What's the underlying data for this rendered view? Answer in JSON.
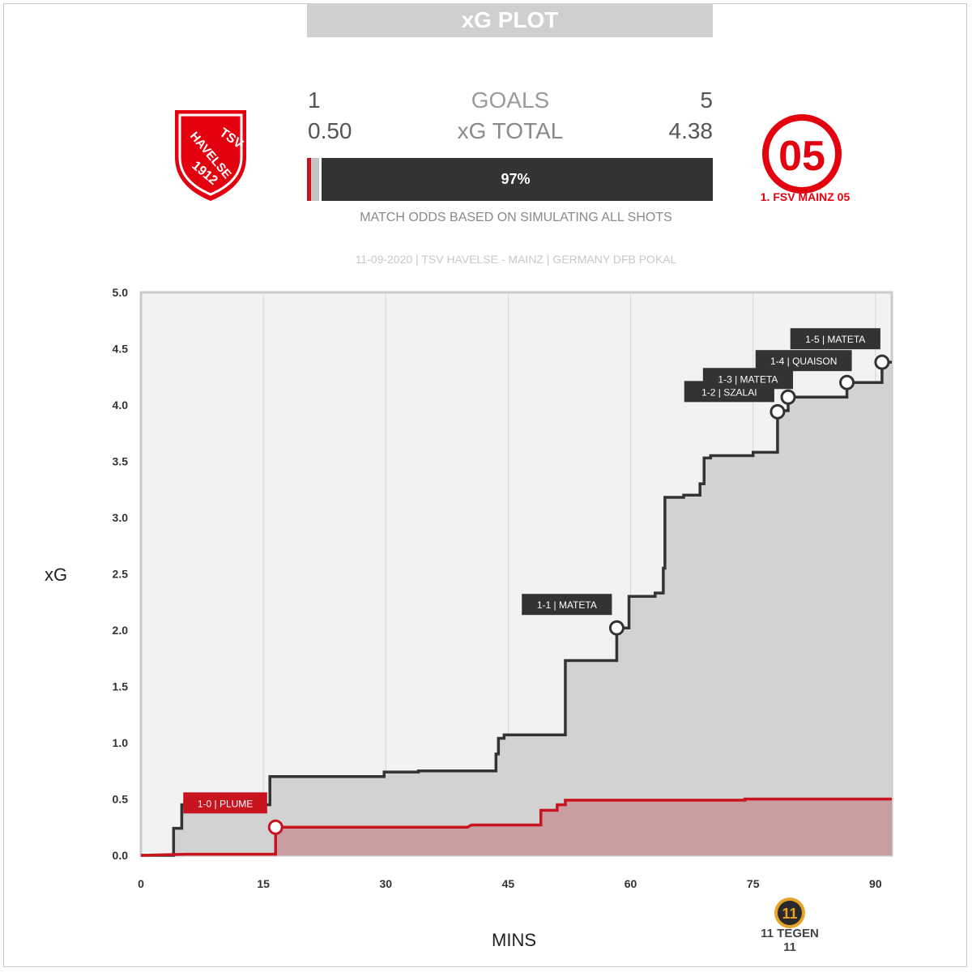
{
  "header": {
    "title": "xG PLOT"
  },
  "scores": {
    "goals_label": "GOALS",
    "xg_label": "xG TOTAL",
    "home_goals": "1",
    "away_goals": "5",
    "home_xg": "0.50",
    "away_xg": "4.38"
  },
  "odds": {
    "away_win_label": "97%",
    "home_win": 0.01,
    "draw": 0.02,
    "away_win": 0.97,
    "note": "MATCH ODDS BASED ON SIMULATING ALL SHOTS"
  },
  "match_info": "11-09-2020 | TSV HAVELSE - MAINZ | GERMANY DFB POKAL",
  "teams": {
    "home": {
      "name": "TSV HAVELSE",
      "logo_top": "TSV",
      "logo_mid": "HAVELSE",
      "logo_year": "1912",
      "color": "#e3000f"
    },
    "away": {
      "name": "1. FSV MAINZ 05",
      "logo_mark": "05",
      "logo_ring": "1. FSV MAINZ 05",
      "color": "#e3000f"
    }
  },
  "brand": {
    "mark": "11",
    "name": "11 TEGEN 11"
  },
  "colors": {
    "home": "#c8141e",
    "away": "#333333",
    "home_fill": "#c99a9e",
    "away_fill": "#d2d2d2",
    "plot_bg": "#f2f2f2"
  },
  "chart_data": {
    "type": "line",
    "step": true,
    "xlabel": "MINS",
    "ylabel": "xG",
    "xlim": [
      0,
      92
    ],
    "ylim": [
      0,
      5
    ],
    "x_ticks": [
      0,
      15,
      30,
      45,
      60,
      75,
      90
    ],
    "y_ticks": [
      "0.0",
      "0.5",
      "1.0",
      "1.5",
      "2.0",
      "2.5",
      "3.0",
      "3.5",
      "4.0",
      "4.5",
      "5.0"
    ],
    "series": [
      {
        "name": "TSV HAVELSE",
        "points": [
          [
            0,
            0
          ],
          [
            5.5,
            0.01
          ],
          [
            16.5,
            0.01
          ],
          [
            16.5,
            0.25
          ],
          [
            40,
            0.25
          ],
          [
            40.5,
            0.27
          ],
          [
            49,
            0.27
          ],
          [
            49,
            0.4
          ],
          [
            51,
            0.4
          ],
          [
            51,
            0.45
          ],
          [
            52,
            0.45
          ],
          [
            52,
            0.49
          ],
          [
            74,
            0.49
          ],
          [
            74,
            0.5
          ],
          [
            92,
            0.5
          ]
        ]
      },
      {
        "name": "MAINZ",
        "points": [
          [
            0,
            0
          ],
          [
            4,
            0
          ],
          [
            4,
            0.24
          ],
          [
            5,
            0.24
          ],
          [
            5,
            0.45
          ],
          [
            15.8,
            0.45
          ],
          [
            15.8,
            0.7
          ],
          [
            29.8,
            0.7
          ],
          [
            29.8,
            0.74
          ],
          [
            34,
            0.74
          ],
          [
            34,
            0.75
          ],
          [
            43.5,
            0.75
          ],
          [
            43.5,
            0.9
          ],
          [
            43.8,
            0.9
          ],
          [
            43.8,
            1.04
          ],
          [
            44.5,
            1.04
          ],
          [
            44.5,
            1.07
          ],
          [
            52,
            1.07
          ],
          [
            52,
            1.73
          ],
          [
            58.3,
            1.73
          ],
          [
            58.3,
            2.02
          ],
          [
            59.8,
            2.02
          ],
          [
            59.8,
            2.3
          ],
          [
            63,
            2.3
          ],
          [
            63,
            2.33
          ],
          [
            64,
            2.33
          ],
          [
            64,
            2.55
          ],
          [
            64.2,
            2.55
          ],
          [
            64.2,
            3.18
          ],
          [
            66.5,
            3.18
          ],
          [
            66.5,
            3.2
          ],
          [
            68.5,
            3.2
          ],
          [
            68.5,
            3.3
          ],
          [
            69,
            3.3
          ],
          [
            69,
            3.53
          ],
          [
            69.8,
            3.53
          ],
          [
            69.8,
            3.55
          ],
          [
            75,
            3.55
          ],
          [
            75,
            3.58
          ],
          [
            78,
            3.58
          ],
          [
            78,
            3.94
          ],
          [
            78.3,
            3.94
          ],
          [
            78.3,
            3.95
          ],
          [
            79.3,
            3.95
          ],
          [
            79.3,
            4.07
          ],
          [
            86.5,
            4.07
          ],
          [
            86.5,
            4.2
          ],
          [
            90.8,
            4.2
          ],
          [
            90.8,
            4.38
          ],
          [
            92,
            4.38
          ]
        ]
      }
    ],
    "goals": [
      {
        "label": "1-0 | PLUME",
        "team": "home",
        "x": 16.5,
        "y": 0.25
      },
      {
        "label": "1-1 | MATETA",
        "team": "away",
        "x": 58.3,
        "y": 2.02
      },
      {
        "label": "1-2 | SZALAI",
        "team": "away",
        "x": 78,
        "y": 3.94
      },
      {
        "label": "1-3 | MATETA",
        "team": "away",
        "x": 79.3,
        "y": 4.07
      },
      {
        "label": "1-4 | QUAISON",
        "team": "away",
        "x": 86.5,
        "y": 4.2
      },
      {
        "label": "1-5 | MATETA",
        "team": "away",
        "x": 90.8,
        "y": 4.38
      }
    ]
  }
}
